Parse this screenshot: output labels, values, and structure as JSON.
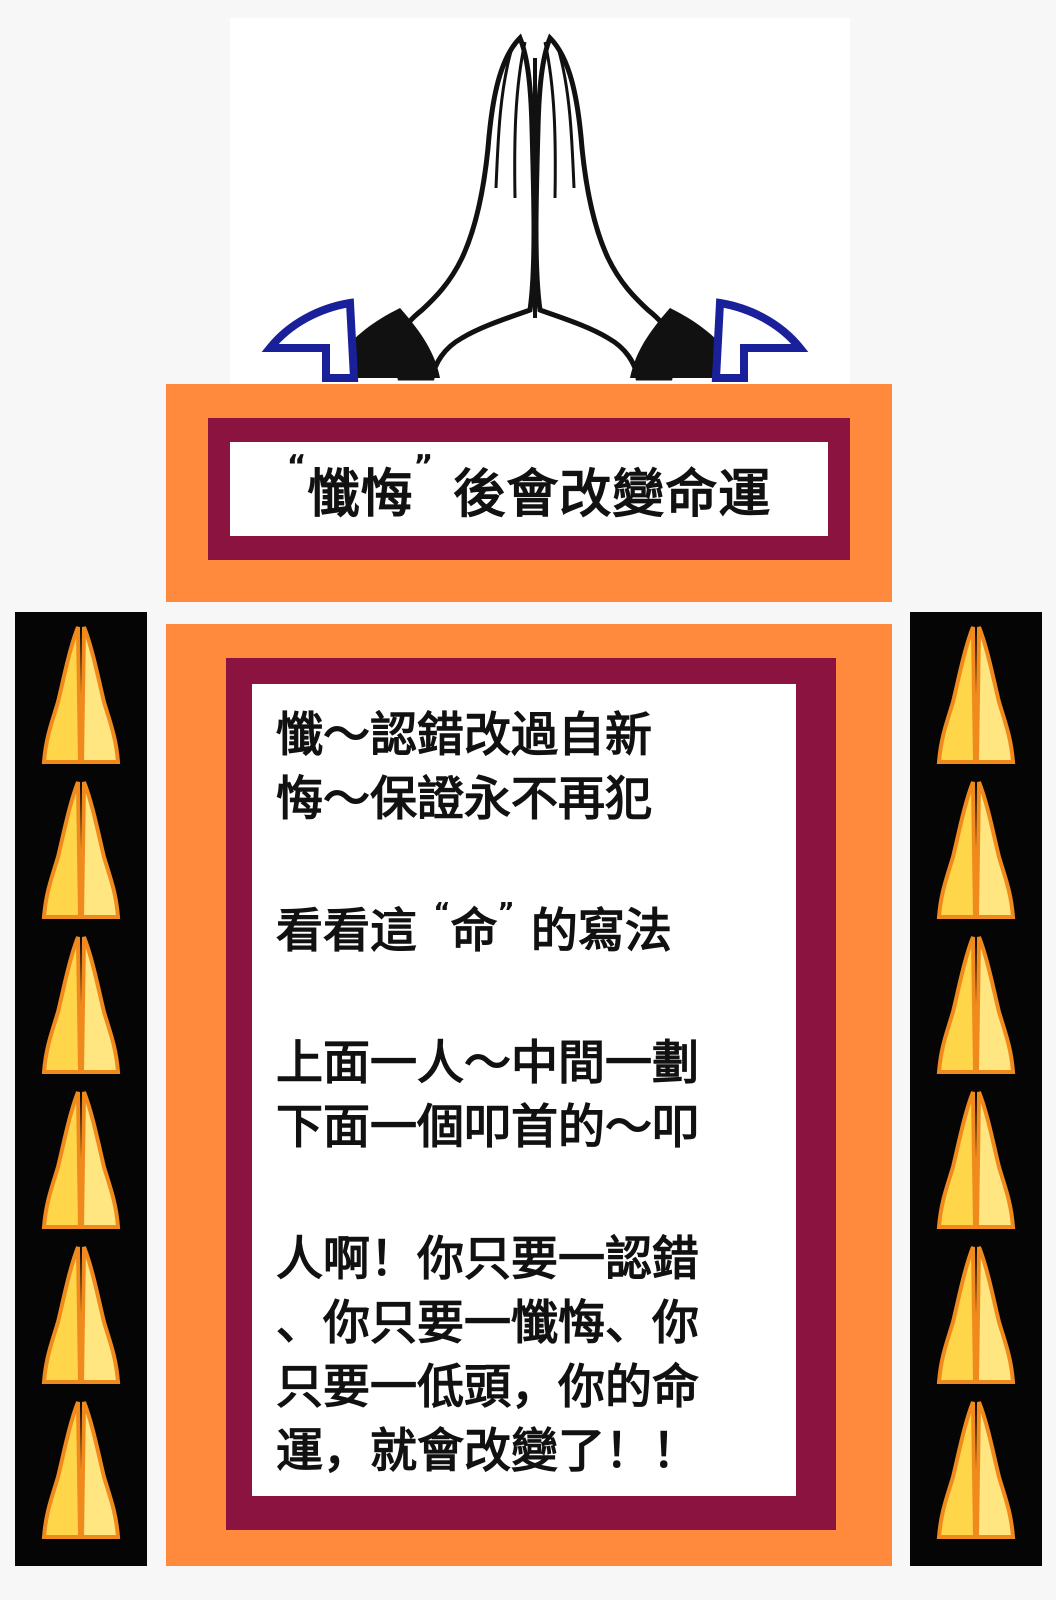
{
  "header": {
    "quote_open": "“",
    "quoted_word": "懺悔",
    "quote_close": "”",
    "rest": " 後會改變命運"
  },
  "body": {
    "line_1": "懺～認錯改過自新",
    "line_2": "悔～保證永不再犯",
    "line_3_prefix": "看看這 ",
    "line_3_quote_open": "“",
    "line_3_word": "命",
    "line_3_quote_close": "”",
    "line_3_suffix": " 的寫法",
    "line_4": "上面一人～中間一劃",
    "line_5": "下面一個叩首的～叩",
    "line_6": "人啊！你只要一認錯",
    "line_7": "、你只要一懺悔、你",
    "line_8": "只要一低頭，你的命",
    "line_9": "運，就會改變了！！"
  },
  "colors": {
    "orange": "#ff8a3d",
    "maroon": "#8b1340",
    "white": "#ffffff",
    "strip_black": "#050505",
    "flame_yellow": "#ffd54a",
    "flame_orange": "#f08a1d"
  },
  "icons": {
    "top": "praying-hands-icon",
    "side": "praying-hands-flame-icon"
  }
}
